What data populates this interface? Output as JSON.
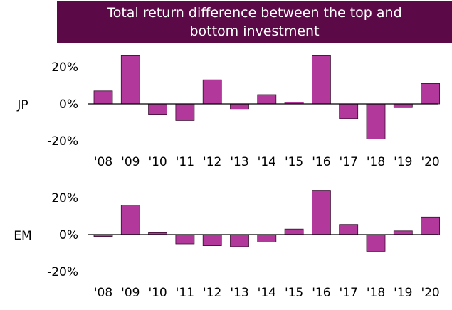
{
  "chart_data": [
    {
      "type": "bar",
      "title": "Total return difference between the top and bottom investment",
      "row_label": "JP",
      "categories": [
        "'08",
        "'09",
        "'10",
        "'11",
        "'12",
        "'13",
        "'14",
        "'15",
        "'16",
        "'17",
        "'18",
        "'19",
        "'20"
      ],
      "values": [
        7,
        26,
        -6,
        -9,
        13,
        -3,
        5,
        1,
        26,
        -8,
        -19,
        -2,
        11
      ],
      "ylim": [
        -20,
        25
      ],
      "yticks": [
        "20%",
        "0%",
        "-20%"
      ],
      "bar_color": "#b2399b",
      "grid": false
    },
    {
      "type": "bar",
      "row_label": "EM",
      "categories": [
        "'08",
        "'09",
        "'10",
        "'11",
        "'12",
        "'13",
        "'14",
        "'15",
        "'16",
        "'17",
        "'18",
        "'19",
        "'20"
      ],
      "values": [
        -1,
        16,
        1,
        -5,
        -6,
        -6.5,
        -4,
        3,
        24,
        5.5,
        -9,
        2,
        9.5
      ],
      "ylim": [
        -20,
        25
      ],
      "yticks": [
        "20%",
        "0%",
        "-20%"
      ],
      "bar_color": "#b2399b",
      "grid": false
    }
  ]
}
